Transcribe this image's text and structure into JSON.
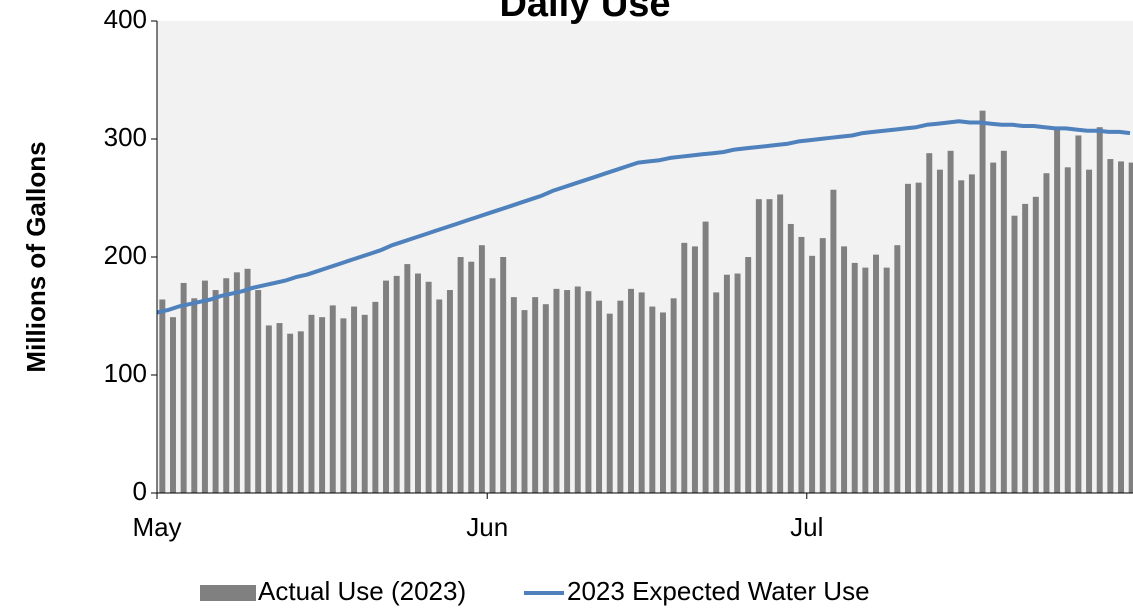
{
  "chart_data": {
    "type": "bar",
    "title": "Daily Use",
    "y_label": "Millions of Gallons",
    "categories": [
      "May",
      null,
      null,
      null,
      null,
      null,
      null,
      null,
      null,
      null,
      null,
      null,
      null,
      null,
      null,
      null,
      null,
      null,
      null,
      null,
      null,
      null,
      null,
      null,
      null,
      null,
      null,
      null,
      null,
      null,
      null,
      "Jun",
      null,
      null,
      null,
      null,
      null,
      null,
      null,
      null,
      null,
      null,
      null,
      null,
      null,
      null,
      null,
      null,
      null,
      null,
      null,
      null,
      null,
      null,
      null,
      null,
      null,
      null,
      null,
      null,
      null,
      "Jul",
      null,
      null,
      null,
      null,
      null,
      null,
      null,
      null,
      null,
      null,
      null,
      null,
      null,
      null,
      null,
      null,
      null,
      null,
      null,
      null,
      null,
      null,
      null,
      null,
      null,
      null,
      null,
      null,
      null,
      null
    ],
    "series": [
      {
        "name": "Actual Use (2023)",
        "type": "bar",
        "color": "#808080",
        "values": [
          164,
          149,
          178,
          165,
          180,
          172,
          182,
          187,
          190,
          172,
          142,
          144,
          135,
          137,
          151,
          149,
          159,
          148,
          158,
          151,
          162,
          180,
          184,
          194,
          186,
          179,
          164,
          172,
          200,
          196,
          210,
          182,
          200,
          166,
          155,
          166,
          160,
          173,
          172,
          175,
          171,
          163,
          152,
          163,
          173,
          170,
          158,
          153,
          165,
          212,
          209,
          230,
          170,
          185,
          186,
          200,
          249,
          249,
          253,
          228,
          217,
          201,
          216,
          257,
          209,
          195,
          191,
          202,
          191,
          210,
          262,
          263,
          288,
          274,
          290,
          265,
          270,
          324,
          280,
          290,
          235,
          245,
          251,
          271,
          310,
          276,
          303,
          274,
          310,
          283,
          281,
          280
        ]
      },
      {
        "name": "2023 Expected Water Use",
        "type": "line",
        "color": "#4f81bd",
        "values": [
          153,
          155,
          158,
          160,
          162,
          164,
          167,
          169,
          171,
          174,
          176,
          178,
          180,
          183,
          185,
          188,
          191,
          194,
          197,
          200,
          203,
          206,
          210,
          213,
          216,
          219,
          222,
          225,
          228,
          231,
          234,
          237,
          240,
          243,
          246,
          249,
          252,
          256,
          259,
          262,
          265,
          268,
          271,
          274,
          277,
          280,
          281,
          282,
          284,
          285,
          286,
          287,
          288,
          289,
          291,
          292,
          293,
          294,
          295,
          296,
          298,
          299,
          300,
          301,
          302,
          303,
          305,
          306,
          307,
          308,
          309,
          310,
          312,
          313,
          314,
          315,
          314,
          314,
          313,
          312,
          312,
          311,
          311,
          310,
          309,
          309,
          308,
          307,
          307,
          306,
          306,
          305
        ]
      }
    ],
    "ylim": [
      0,
      400
    ],
    "yticks": [
      0,
      100,
      200,
      300,
      400
    ],
    "grid": false,
    "legend": "bottom",
    "background": "#f2f2f2"
  }
}
